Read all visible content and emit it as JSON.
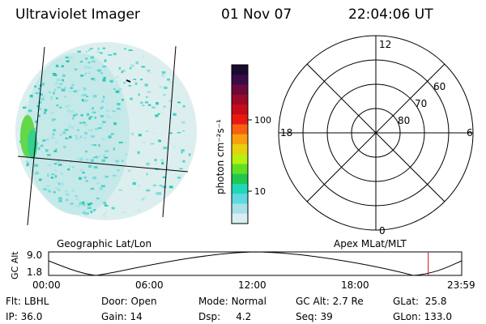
{
  "header": {
    "title": "Ultraviolet Imager",
    "date": "01 Nov 07",
    "time": "22:04:06 UT"
  },
  "colorbar": {
    "unit_label": "photon cm⁻²s⁻¹",
    "ticks": [
      "100",
      "10"
    ],
    "colors": [
      "#1a0a2e",
      "#3a0a4a",
      "#6a0a3a",
      "#9a0a2a",
      "#c80a1a",
      "#e81a10",
      "#f86010",
      "#f8a010",
      "#e8d010",
      "#b8f010",
      "#60e020",
      "#20c850",
      "#20d8b8",
      "#60d8e0",
      "#a8e0ea",
      "#d8eef0"
    ]
  },
  "polar": {
    "mlt_labels": {
      "top": "12",
      "left": "18",
      "right": "6",
      "bottom": "0"
    },
    "lat_labels": [
      "60",
      "70",
      "80"
    ]
  },
  "timeline": {
    "ylabel": "GC Alt",
    "yticks": [
      "9.0",
      "1.8"
    ],
    "left_label": "Geographic Lat/Lon",
    "right_label": "Apex MLat/MLT",
    "xticks": [
      "00:00",
      "06:00",
      "12:00",
      "18:00",
      "23:59"
    ],
    "current_fraction": 0.919,
    "marker_color": "#d01010"
  },
  "info": [
    [
      {
        "label": "Flt:",
        "value": "LBHL"
      },
      {
        "label": "Door:",
        "value": "Open"
      },
      {
        "label": "Mode:",
        "value": "Normal"
      },
      {
        "label": "GC Alt:",
        "value": "2.7 Re"
      },
      {
        "label": "GLat:",
        "value": "25.8"
      }
    ],
    [
      {
        "label": "IP:",
        "value": "36.0"
      },
      {
        "label": "Gain:",
        "value": "14"
      },
      {
        "label": "Dsp:",
        "value": "4.2"
      },
      {
        "label": "Seq:",
        "value": "39"
      },
      {
        "label": "GLon:",
        "value": "133.0"
      }
    ]
  ]
}
